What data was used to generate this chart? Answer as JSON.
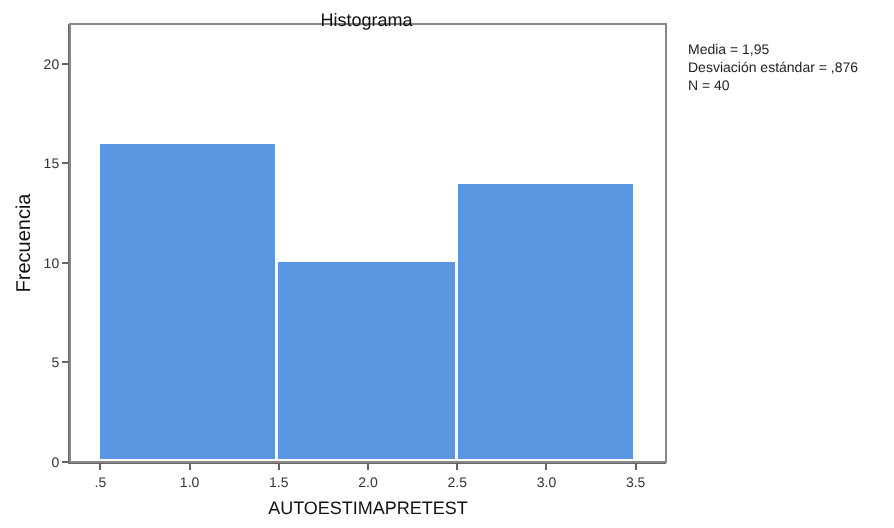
{
  "chart_data": {
    "type": "histogram",
    "title": "Histograma",
    "xlabel": "AUTOESTIMAPRETEST",
    "ylabel": "Frecuencia",
    "bins": [
      0.5,
      1.5,
      2.5,
      3.5
    ],
    "values": [
      16,
      10,
      14
    ],
    "color": "#5b96e3",
    "xlim": [
      0.33,
      3.67
    ],
    "xticks": [
      {
        "value": 0.5,
        "label": ".5"
      },
      {
        "value": 1,
        "label": "1.0"
      },
      {
        "value": 1.5,
        "label": "1.5"
      },
      {
        "value": 2,
        "label": "2.0"
      },
      {
        "value": 2.5,
        "label": "2.5"
      },
      {
        "value": 3,
        "label": "3.0"
      },
      {
        "value": 3.5,
        "label": "3.5"
      }
    ],
    "ylim": [
      0,
      22
    ],
    "yticks": [
      0,
      5,
      10,
      15,
      20
    ],
    "grid": false,
    "annotations": [
      "Media = 1,95",
      "Desviación estándar = ,876",
      "N = 40"
    ]
  }
}
